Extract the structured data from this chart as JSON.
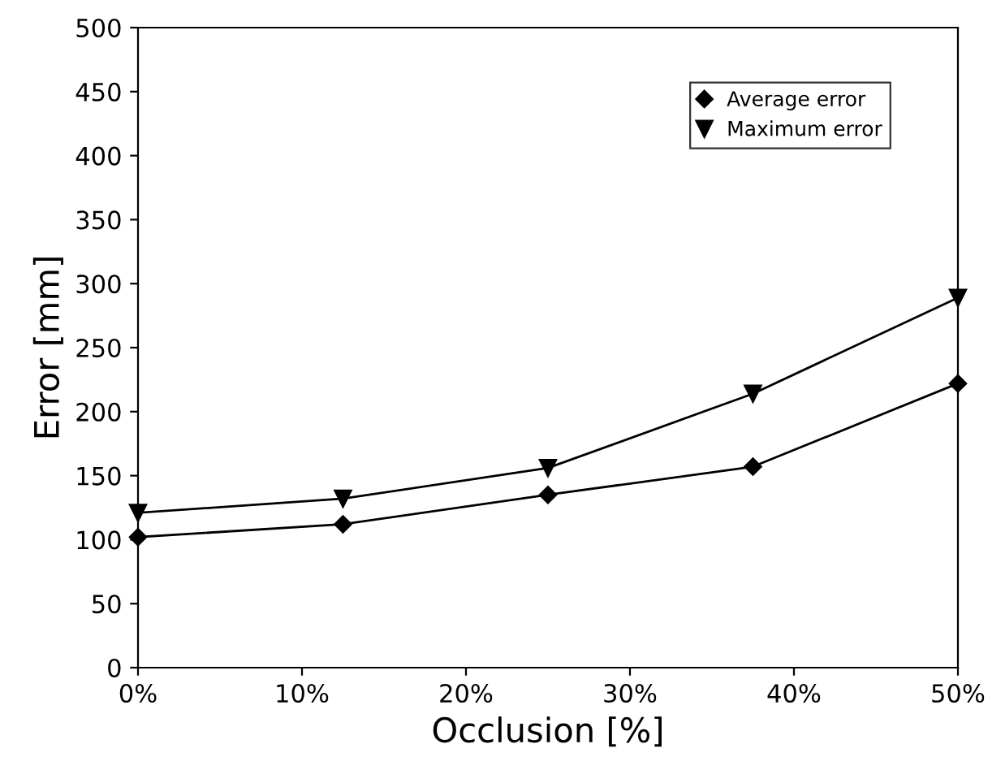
{
  "chart_data": {
    "type": "line",
    "xlabel": "Occlusion [%]",
    "ylabel": "Error [mm]",
    "x": [
      0,
      12.5,
      25,
      37.5,
      50
    ],
    "series": [
      {
        "name": "Average error",
        "color": "#000000",
        "marker": "diamond",
        "values": [
          102,
          112,
          135,
          157,
          222
        ]
      },
      {
        "name": "Maximum error",
        "color": "#000000",
        "marker": "triangle",
        "values": [
          121,
          132,
          156,
          214,
          289
        ]
      }
    ],
    "xlim": [
      0,
      50
    ],
    "xticks": [
      {
        "value": 0,
        "label": "0%"
      },
      {
        "value": 10,
        "label": "10%"
      },
      {
        "value": 20,
        "label": "20%"
      },
      {
        "value": 30,
        "label": "30%"
      },
      {
        "value": 40,
        "label": "40%"
      },
      {
        "value": 50,
        "label": "50%"
      }
    ],
    "ylim": [
      0,
      500
    ],
    "yticks": [
      0,
      50,
      100,
      150,
      200,
      250,
      300,
      350,
      400,
      450,
      500
    ],
    "grid": false,
    "legend": "top right",
    "line_style": "solid"
  }
}
